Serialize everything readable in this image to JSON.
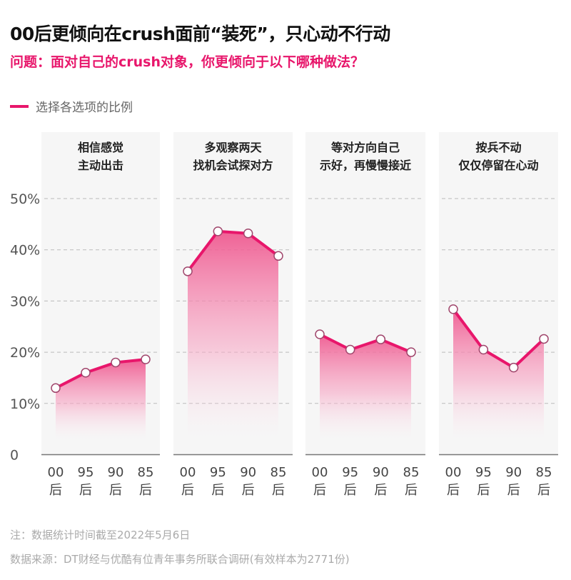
{
  "title": "00后更倾向在crush面前“装死”，只心动不行动",
  "subtitle": "问题：面对自己的crush对象，你更倾向于以下哪种做法？",
  "legend": "选择各选项的比例",
  "note": "注：数据统计时间截至2022年5月6日",
  "source": "数据来源：DT财经与优酷有位青年事务所联合调研(有效样本为2771份)",
  "colors": {
    "accent": "#e8166b",
    "panel": "#f6f6f6"
  },
  "chart_data": {
    "type": "line",
    "ylim": [
      0,
      50
    ],
    "yticks": [
      "0",
      "10%",
      "20%",
      "30%",
      "40%",
      "50%"
    ],
    "ytick_values": [
      0,
      10,
      20,
      30,
      40,
      50
    ],
    "categories": [
      [
        "00",
        "后"
      ],
      [
        "95",
        "后"
      ],
      [
        "90",
        "后"
      ],
      [
        "85",
        "后"
      ]
    ],
    "grid": true,
    "panels": [
      {
        "title": [
          "相信感觉",
          "主动出击"
        ],
        "values": [
          13,
          16,
          18,
          18.6
        ]
      },
      {
        "title": [
          "多观察两天",
          "找机会试探对方"
        ],
        "values": [
          35.8,
          43.6,
          43.2,
          38.8
        ]
      },
      {
        "title": [
          "等对方向自己",
          "示好，再慢慢接近"
        ],
        "values": [
          23.5,
          20.5,
          22.5,
          20
        ]
      },
      {
        "title": [
          "按兵不动",
          "仅仅停留在心动"
        ],
        "values": [
          28.4,
          20.5,
          17,
          22.6
        ]
      }
    ]
  }
}
